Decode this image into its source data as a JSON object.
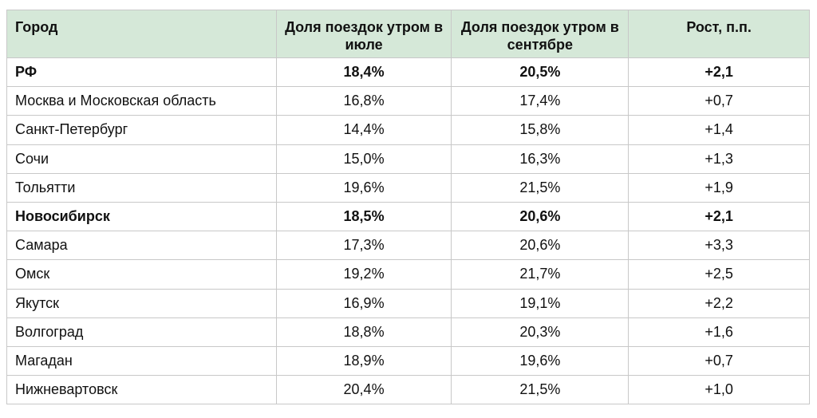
{
  "table": {
    "header": [
      "Город",
      "Доля поездок утром в июле",
      "Доля поездок утром в сентябре",
      "Рост, п.п."
    ],
    "rows": [
      [
        "РФ",
        "18,4%",
        "20,5%",
        "+2,1"
      ],
      [
        "Москва и Московская область",
        "16,8%",
        "17,4%",
        "+0,7"
      ],
      [
        "Санкт-Петербург",
        "14,4%",
        "15,8%",
        "+1,4"
      ],
      [
        "Сочи",
        "15,0%",
        "16,3%",
        "+1,3"
      ],
      [
        "Тольятти",
        "19,6%",
        "21,5%",
        "+1,9"
      ],
      [
        "Новосибирск",
        "18,5%",
        "20,6%",
        "+2,1"
      ],
      [
        "Самара",
        "17,3%",
        "20,6%",
        "+3,3"
      ],
      [
        "Омск",
        "19,2%",
        "21,7%",
        "+2,5"
      ],
      [
        "Якутск",
        "16,9%",
        "19,1%",
        "+2,2"
      ],
      [
        "Волгоград",
        "18,8%",
        "20,3%",
        "+1,6"
      ],
      [
        "Магадан",
        "18,9%",
        "19,6%",
        "+0,7"
      ],
      [
        "Нижневартовск",
        "20,4%",
        "21,5%",
        "+1,0"
      ]
    ]
  }
}
